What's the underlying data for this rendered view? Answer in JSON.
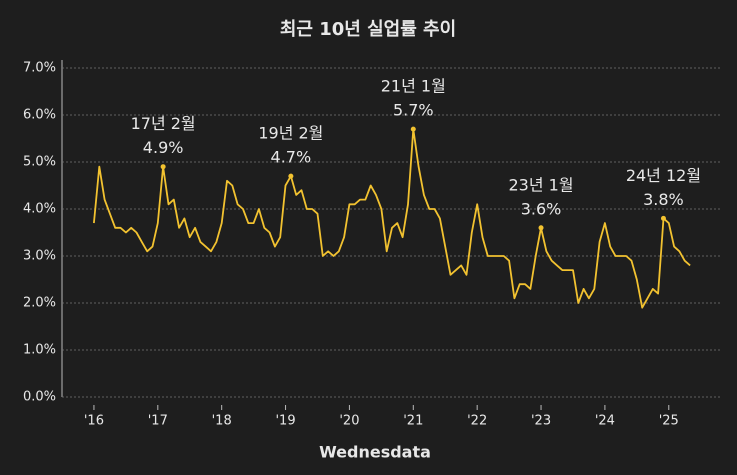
{
  "chart_data": {
    "type": "line",
    "title": "최근 10년 실업률 추이",
    "footer": "Wednesdata",
    "x": [
      "2016-01",
      "2016-02",
      "2016-03",
      "2016-04",
      "2016-05",
      "2016-06",
      "2016-07",
      "2016-08",
      "2016-09",
      "2016-10",
      "2016-11",
      "2016-12",
      "2017-01",
      "2017-02",
      "2017-03",
      "2017-04",
      "2017-05",
      "2017-06",
      "2017-07",
      "2017-08",
      "2017-09",
      "2017-10",
      "2017-11",
      "2017-12",
      "2018-01",
      "2018-02",
      "2018-03",
      "2018-04",
      "2018-05",
      "2018-06",
      "2018-07",
      "2018-08",
      "2018-09",
      "2018-10",
      "2018-11",
      "2018-12",
      "2019-01",
      "2019-02",
      "2019-03",
      "2019-04",
      "2019-05",
      "2019-06",
      "2019-07",
      "2019-08",
      "2019-09",
      "2019-10",
      "2019-11",
      "2019-12",
      "2020-01",
      "2020-02",
      "2020-03",
      "2020-04",
      "2020-05",
      "2020-06",
      "2020-07",
      "2020-08",
      "2020-09",
      "2020-10",
      "2020-11",
      "2020-12",
      "2021-01",
      "2021-02",
      "2021-03",
      "2021-04",
      "2021-05",
      "2021-06",
      "2021-07",
      "2021-08",
      "2021-09",
      "2021-10",
      "2021-11",
      "2021-12",
      "2022-01",
      "2022-02",
      "2022-03",
      "2022-04",
      "2022-05",
      "2022-06",
      "2022-07",
      "2022-08",
      "2022-09",
      "2022-10",
      "2022-11",
      "2022-12",
      "2023-01",
      "2023-02",
      "2023-03",
      "2023-04",
      "2023-05",
      "2023-06",
      "2023-07",
      "2023-08",
      "2023-09",
      "2023-10",
      "2023-11",
      "2023-12",
      "2024-01",
      "2024-02",
      "2024-03",
      "2024-04",
      "2024-05",
      "2024-06",
      "2024-07",
      "2024-08",
      "2024-09",
      "2024-10",
      "2024-11",
      "2024-12",
      "2025-01",
      "2025-02",
      "2025-03",
      "2025-04",
      "2025-05"
    ],
    "series": [
      {
        "color": "#f2c230",
        "values": [
          3.7,
          4.9,
          4.2,
          3.9,
          3.6,
          3.6,
          3.5,
          3.6,
          3.5,
          3.3,
          3.1,
          3.2,
          3.7,
          4.9,
          4.1,
          4.2,
          3.6,
          3.8,
          3.4,
          3.6,
          3.3,
          3.2,
          3.1,
          3.3,
          3.7,
          4.6,
          4.5,
          4.1,
          4.0,
          3.7,
          3.7,
          4.0,
          3.6,
          3.5,
          3.2,
          3.4,
          4.5,
          4.7,
          4.3,
          4.4,
          4.0,
          4.0,
          3.9,
          3.0,
          3.1,
          3.0,
          3.1,
          3.4,
          4.1,
          4.1,
          4.2,
          4.2,
          4.5,
          4.3,
          4.0,
          3.1,
          3.6,
          3.7,
          3.4,
          4.1,
          5.7,
          4.9,
          4.3,
          4.0,
          4.0,
          3.8,
          3.2,
          2.6,
          2.7,
          2.8,
          2.6,
          3.5,
          4.1,
          3.4,
          3.0,
          3.0,
          3.0,
          3.0,
          2.9,
          2.1,
          2.4,
          2.4,
          2.3,
          3.0,
          3.6,
          3.1,
          2.9,
          2.8,
          2.7,
          2.7,
          2.7,
          2.0,
          2.3,
          2.1,
          2.3,
          3.3,
          3.7,
          3.2,
          3.0,
          3.0,
          3.0,
          2.9,
          2.5,
          1.9,
          2.1,
          2.3,
          2.2,
          3.8,
          3.7,
          3.2,
          3.1,
          2.9,
          2.8
        ]
      }
    ],
    "xlim": [
      "2015-07",
      "2025-11"
    ],
    "xticks": [
      {
        "value": "2016-01",
        "label": "'16"
      },
      {
        "value": "2017-01",
        "label": "'17"
      },
      {
        "value": "2018-01",
        "label": "'18"
      },
      {
        "value": "2019-01",
        "label": "'19"
      },
      {
        "value": "2020-01",
        "label": "'20"
      },
      {
        "value": "2021-01",
        "label": "'21"
      },
      {
        "value": "2022-01",
        "label": "'22"
      },
      {
        "value": "2023-01",
        "label": "'23"
      },
      {
        "value": "2024-01",
        "label": "'24"
      },
      {
        "value": "2025-01",
        "label": "'25"
      }
    ],
    "ylim": [
      0,
      7
    ],
    "yticks": [
      {
        "value": 0,
        "label": "0.0%"
      },
      {
        "value": 1,
        "label": "1.0%"
      },
      {
        "value": 2,
        "label": "2.0%"
      },
      {
        "value": 3,
        "label": "3.0%"
      },
      {
        "value": 4,
        "label": "4.0%"
      },
      {
        "value": 5,
        "label": "5.0%"
      },
      {
        "value": 6,
        "label": "6.0%"
      },
      {
        "value": 7,
        "label": "7.0%"
      }
    ],
    "grid": true,
    "annotations": [
      {
        "x": "2017-02",
        "date_label": "17년 2월",
        "value_label": "4.9%"
      },
      {
        "x": "2019-02",
        "date_label": "19년 2월",
        "value_label": "4.7%"
      },
      {
        "x": "2021-01",
        "date_label": "21년 1월",
        "value_label": "5.7%"
      },
      {
        "x": "2023-01",
        "date_label": "23년 1월",
        "value_label": "3.6%"
      },
      {
        "x": "2024-12",
        "date_label": "24년 12월",
        "value_label": "3.8%"
      }
    ]
  }
}
